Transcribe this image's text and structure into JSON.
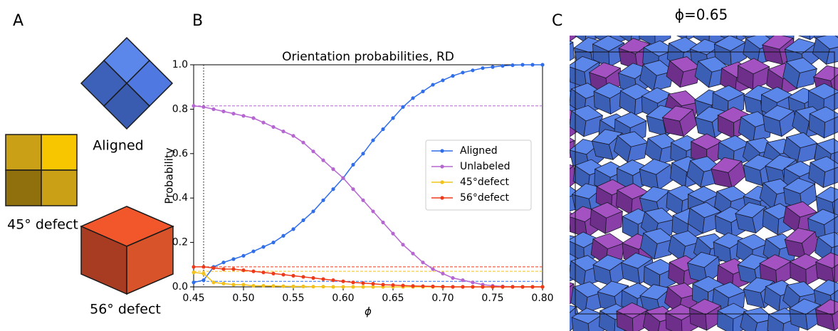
{
  "panels": {
    "a": "A",
    "b": "B",
    "c": "C"
  },
  "panel_a": {
    "aligned": "Aligned",
    "defect45": "45° defect",
    "defect56": "56° defect"
  },
  "panel_c": {
    "title": "ϕ=0.65"
  },
  "chart_data": {
    "type": "line",
    "title": "Orientation probabilities, RD",
    "x_label": "ϕ",
    "y_label": "Probability",
    "x": [
      0.45,
      0.46,
      0.47,
      0.48,
      0.49,
      0.5,
      0.51,
      0.52,
      0.53,
      0.54,
      0.55,
      0.56,
      0.57,
      0.58,
      0.59,
      0.6,
      0.61,
      0.62,
      0.63,
      0.64,
      0.65,
      0.66,
      0.67,
      0.68,
      0.69,
      0.7,
      0.71,
      0.72,
      0.73,
      0.74,
      0.75,
      0.76,
      0.77,
      0.78,
      0.79,
      0.8
    ],
    "series": [
      {
        "name": "Aligned",
        "color": "#2f6ee8",
        "reference": 0.025,
        "values": [
          0.02,
          0.03,
          0.09,
          0.11,
          0.125,
          0.14,
          0.16,
          0.18,
          0.2,
          0.23,
          0.26,
          0.3,
          0.34,
          0.39,
          0.44,
          0.49,
          0.55,
          0.6,
          0.66,
          0.71,
          0.76,
          0.81,
          0.85,
          0.88,
          0.91,
          0.93,
          0.95,
          0.965,
          0.975,
          0.985,
          0.99,
          0.995,
          0.998,
          1.0,
          1.0,
          1.0
        ]
      },
      {
        "name": "Unlabeled",
        "color": "#b566d0",
        "reference": 0.815,
        "values": [
          0.815,
          0.81,
          0.8,
          0.79,
          0.78,
          0.77,
          0.76,
          0.74,
          0.72,
          0.7,
          0.68,
          0.65,
          0.61,
          0.57,
          0.53,
          0.49,
          0.44,
          0.39,
          0.34,
          0.29,
          0.24,
          0.19,
          0.15,
          0.11,
          0.08,
          0.06,
          0.04,
          0.03,
          0.02,
          0.01,
          0.005,
          0.002,
          0.001,
          0.0,
          0.0,
          0.0
        ]
      },
      {
        "name": "45°defect",
        "color": "#f2c21b",
        "reference": 0.07,
        "values": [
          0.065,
          0.06,
          0.02,
          0.015,
          0.01,
          0.01,
          0.005,
          0.005,
          0.004,
          0.003,
          0.002,
          0.002,
          0.001,
          0.001,
          0.0,
          0.0,
          0.0,
          0.0,
          0.0,
          0.0,
          0.0,
          0.0,
          0.0,
          0.0,
          0.0,
          0.0,
          0.0,
          0.0,
          0.0,
          0.0,
          0.0,
          0.0,
          0.0,
          0.0,
          0.0,
          0.0
        ]
      },
      {
        "name": "56°defect",
        "color": "#ee3a1a",
        "reference": 0.09,
        "values": [
          0.09,
          0.09,
          0.085,
          0.08,
          0.08,
          0.075,
          0.07,
          0.065,
          0.06,
          0.055,
          0.05,
          0.045,
          0.04,
          0.035,
          0.03,
          0.025,
          0.02,
          0.017,
          0.014,
          0.01,
          0.008,
          0.006,
          0.004,
          0.003,
          0.002,
          0.001,
          0.0,
          0.0,
          0.0,
          0.0,
          0.0,
          0.0,
          0.0,
          0.0,
          0.0,
          0.0
        ]
      }
    ],
    "vline": 0.46,
    "xlim": [
      0.45,
      0.8
    ],
    "xticks": [
      0.45,
      {
        "value": 0.5,
        "label": "0.50"
      },
      0.55,
      {
        "value": 0.6,
        "label": "0.60"
      },
      0.65,
      {
        "value": 0.7,
        "label": "0.70"
      },
      0.75,
      {
        "value": 0.8,
        "label": "0.80"
      }
    ],
    "ylim": [
      0,
      1
    ],
    "yticks": [
      {
        "value": 0,
        "label": "0.0"
      },
      0.2,
      0.4,
      0.6,
      0.8,
      {
        "value": 1,
        "label": "1.0"
      }
    ],
    "legend": "right"
  }
}
